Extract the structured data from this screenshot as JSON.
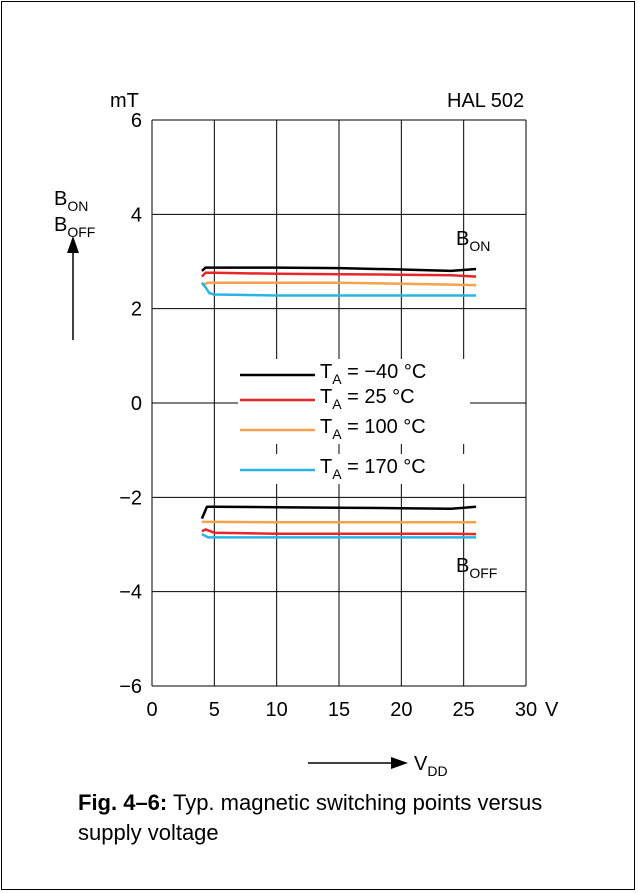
{
  "chart_data": {
    "type": "line",
    "top_right_label": "HAL 502",
    "y_unit": "mT",
    "x_unit": "V",
    "y_axis_label": {
      "main": "B",
      "sub_on": "ON",
      "sub_off": "OFF"
    },
    "x_axis_label": {
      "main": "V",
      "sub": "DD"
    },
    "curve_label_on": {
      "main": "B",
      "sub": "ON"
    },
    "curve_label_off": {
      "main": "B",
      "sub": "OFF"
    },
    "xlim": [
      0,
      30
    ],
    "ylim": [
      -6,
      6
    ],
    "x_ticks": [
      "0",
      "5",
      "10",
      "15",
      "20",
      "25",
      "30"
    ],
    "y_ticks": [
      "6",
      "4",
      "2",
      "0",
      "−2",
      "−4",
      "−6"
    ],
    "grid": true,
    "legend_position": "center",
    "series": [
      {
        "name": "T_A = −40 °C",
        "legend_main": "T",
        "legend_sub": "A",
        "legend_rest": " = −40 °C",
        "color": "#000000",
        "on": {
          "x": [
            4.0,
            4.3,
            5,
            10,
            15,
            20,
            24,
            26
          ],
          "y": [
            2.8,
            2.87,
            2.87,
            2.87,
            2.86,
            2.83,
            2.8,
            2.84
          ]
        },
        "off": {
          "x": [
            4.0,
            4.4,
            5,
            10,
            15,
            20,
            24,
            26
          ],
          "y": [
            -2.45,
            -2.2,
            -2.2,
            -2.21,
            -2.22,
            -2.23,
            -2.24,
            -2.2
          ]
        }
      },
      {
        "name": "T_A = 25 °C",
        "legend_main": "T",
        "legend_sub": "A",
        "legend_rest": " = 25 °C",
        "color": "#e8262a",
        "on": {
          "x": [
            4.0,
            4.3,
            5,
            10,
            15,
            20,
            24,
            26
          ],
          "y": [
            2.68,
            2.76,
            2.76,
            2.74,
            2.73,
            2.72,
            2.71,
            2.68
          ]
        },
        "off": {
          "x": [
            4.0,
            4.3,
            5,
            10,
            15,
            20,
            24,
            26
          ],
          "y": [
            -2.72,
            -2.68,
            -2.75,
            -2.77,
            -2.77,
            -2.77,
            -2.77,
            -2.78
          ]
        }
      },
      {
        "name": "T_A = 100 °C",
        "legend_main": "T",
        "legend_sub": "A",
        "legend_rest": " = 100 °C",
        "color": "#f5a24a",
        "on": {
          "x": [
            4.0,
            4.5,
            5,
            10,
            15,
            20,
            24,
            26
          ],
          "y": [
            2.5,
            2.55,
            2.55,
            2.55,
            2.55,
            2.53,
            2.51,
            2.5
          ]
        },
        "off": {
          "x": [
            4.0,
            4.5,
            5,
            10,
            15,
            20,
            24,
            26
          ],
          "y": [
            -2.52,
            -2.52,
            -2.52,
            -2.53,
            -2.53,
            -2.53,
            -2.53,
            -2.53
          ]
        }
      },
      {
        "name": "T_A = 170 °C",
        "legend_main": "T",
        "legend_sub": "A",
        "legend_rest": " = 170 °C",
        "color": "#2ab4e6",
        "on": {
          "x": [
            4.0,
            4.3,
            4.6,
            5,
            10,
            15,
            20,
            24,
            26
          ],
          "y": [
            2.55,
            2.45,
            2.33,
            2.3,
            2.28,
            2.28,
            2.28,
            2.28,
            2.28
          ]
        },
        "off": {
          "x": [
            4.0,
            4.5,
            5,
            10,
            15,
            20,
            24,
            26
          ],
          "y": [
            -2.78,
            -2.85,
            -2.85,
            -2.85,
            -2.85,
            -2.85,
            -2.85,
            -2.85
          ]
        }
      }
    ]
  },
  "caption": {
    "label": "Fig. 4–6:",
    "text": " Typ. magnetic switching points versus supply voltage"
  }
}
